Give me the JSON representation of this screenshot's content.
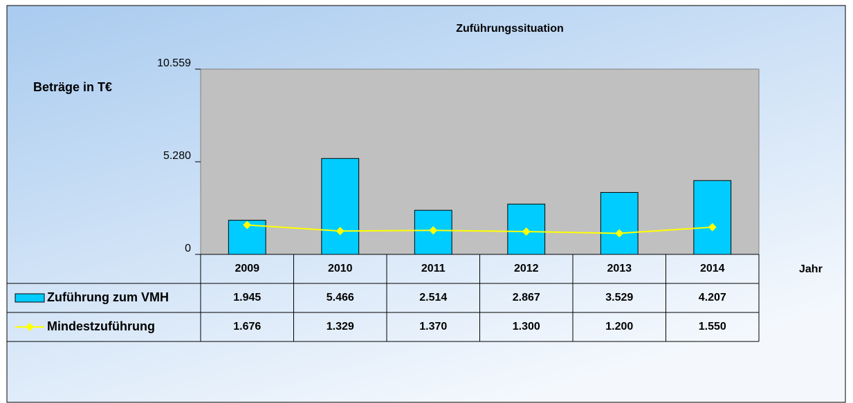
{
  "chart_data": {
    "type": "bar-line",
    "title": "Zuführungssituation",
    "y_label": "Beträge in T€",
    "x_label": "Jahr",
    "categories": [
      "2009",
      "2010",
      "2011",
      "2012",
      "2013",
      "2014"
    ],
    "series": [
      {
        "name": "Zuführung zum VMH",
        "type": "bar",
        "color": "#00ccff",
        "values": [
          1945,
          5466,
          2514,
          2867,
          3529,
          4207
        ],
        "value_labels": [
          "1.945",
          "5.466",
          "2.514",
          "2.867",
          "3.529",
          "4.207"
        ]
      },
      {
        "name": "Mindestzuführung",
        "type": "line",
        "color": "#ffff00",
        "values": [
          1676,
          1329,
          1370,
          1300,
          1200,
          1550
        ],
        "value_labels": [
          "1.676",
          "1.329",
          "1.370",
          "1.300",
          "1.200",
          "1.550"
        ]
      }
    ],
    "ylim": [
      0,
      10559
    ],
    "yticks": [
      0,
      {
        "value": 5280,
        "label": "5.280"
      },
      {
        "value": 10559,
        "label": "10.559"
      }
    ]
  }
}
